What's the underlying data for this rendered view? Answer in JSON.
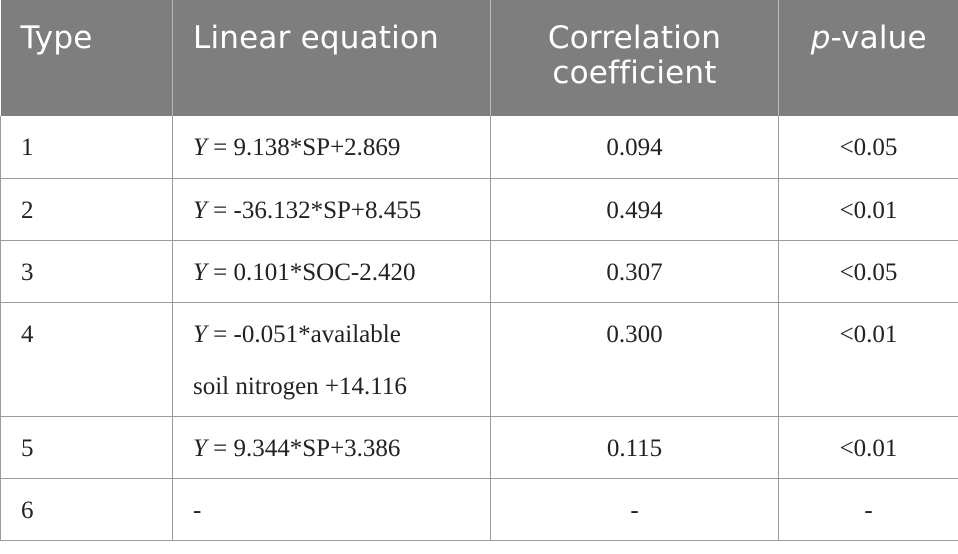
{
  "header": {
    "type": "Type",
    "linear_equation": "Linear equation",
    "correlation_coefficient": "Correlation coefficient",
    "p_value_italic": "p",
    "p_value_rest": "-value"
  },
  "rows": [
    {
      "type": "1",
      "eq_y": "Y",
      "eq_rest": " = 9.138*SP+2.869",
      "corr": "0.094",
      "p": "<0.05"
    },
    {
      "type": "2",
      "eq_y": "Y",
      "eq_rest": " = -36.132*SP+8.455",
      "corr": "0.494",
      "p": "<0.01"
    },
    {
      "type": "3",
      "eq_y": "Y",
      "eq_rest": " = 0.101*SOC-2.420",
      "corr": "0.307",
      "p": "<0.05"
    },
    {
      "type": "4",
      "eq_y": "Y",
      "eq_rest": " = -0.051*available",
      "eq_line2": "soil nitrogen +14.116",
      "corr": "0.300",
      "p": "<0.01"
    },
    {
      "type": "5",
      "eq_y": "Y",
      "eq_rest": " = 9.344*SP+3.386",
      "corr": "0.115",
      "p": "<0.01"
    },
    {
      "type": "6",
      "eq_dash": "-",
      "corr": "-",
      "p": "-"
    }
  ]
}
